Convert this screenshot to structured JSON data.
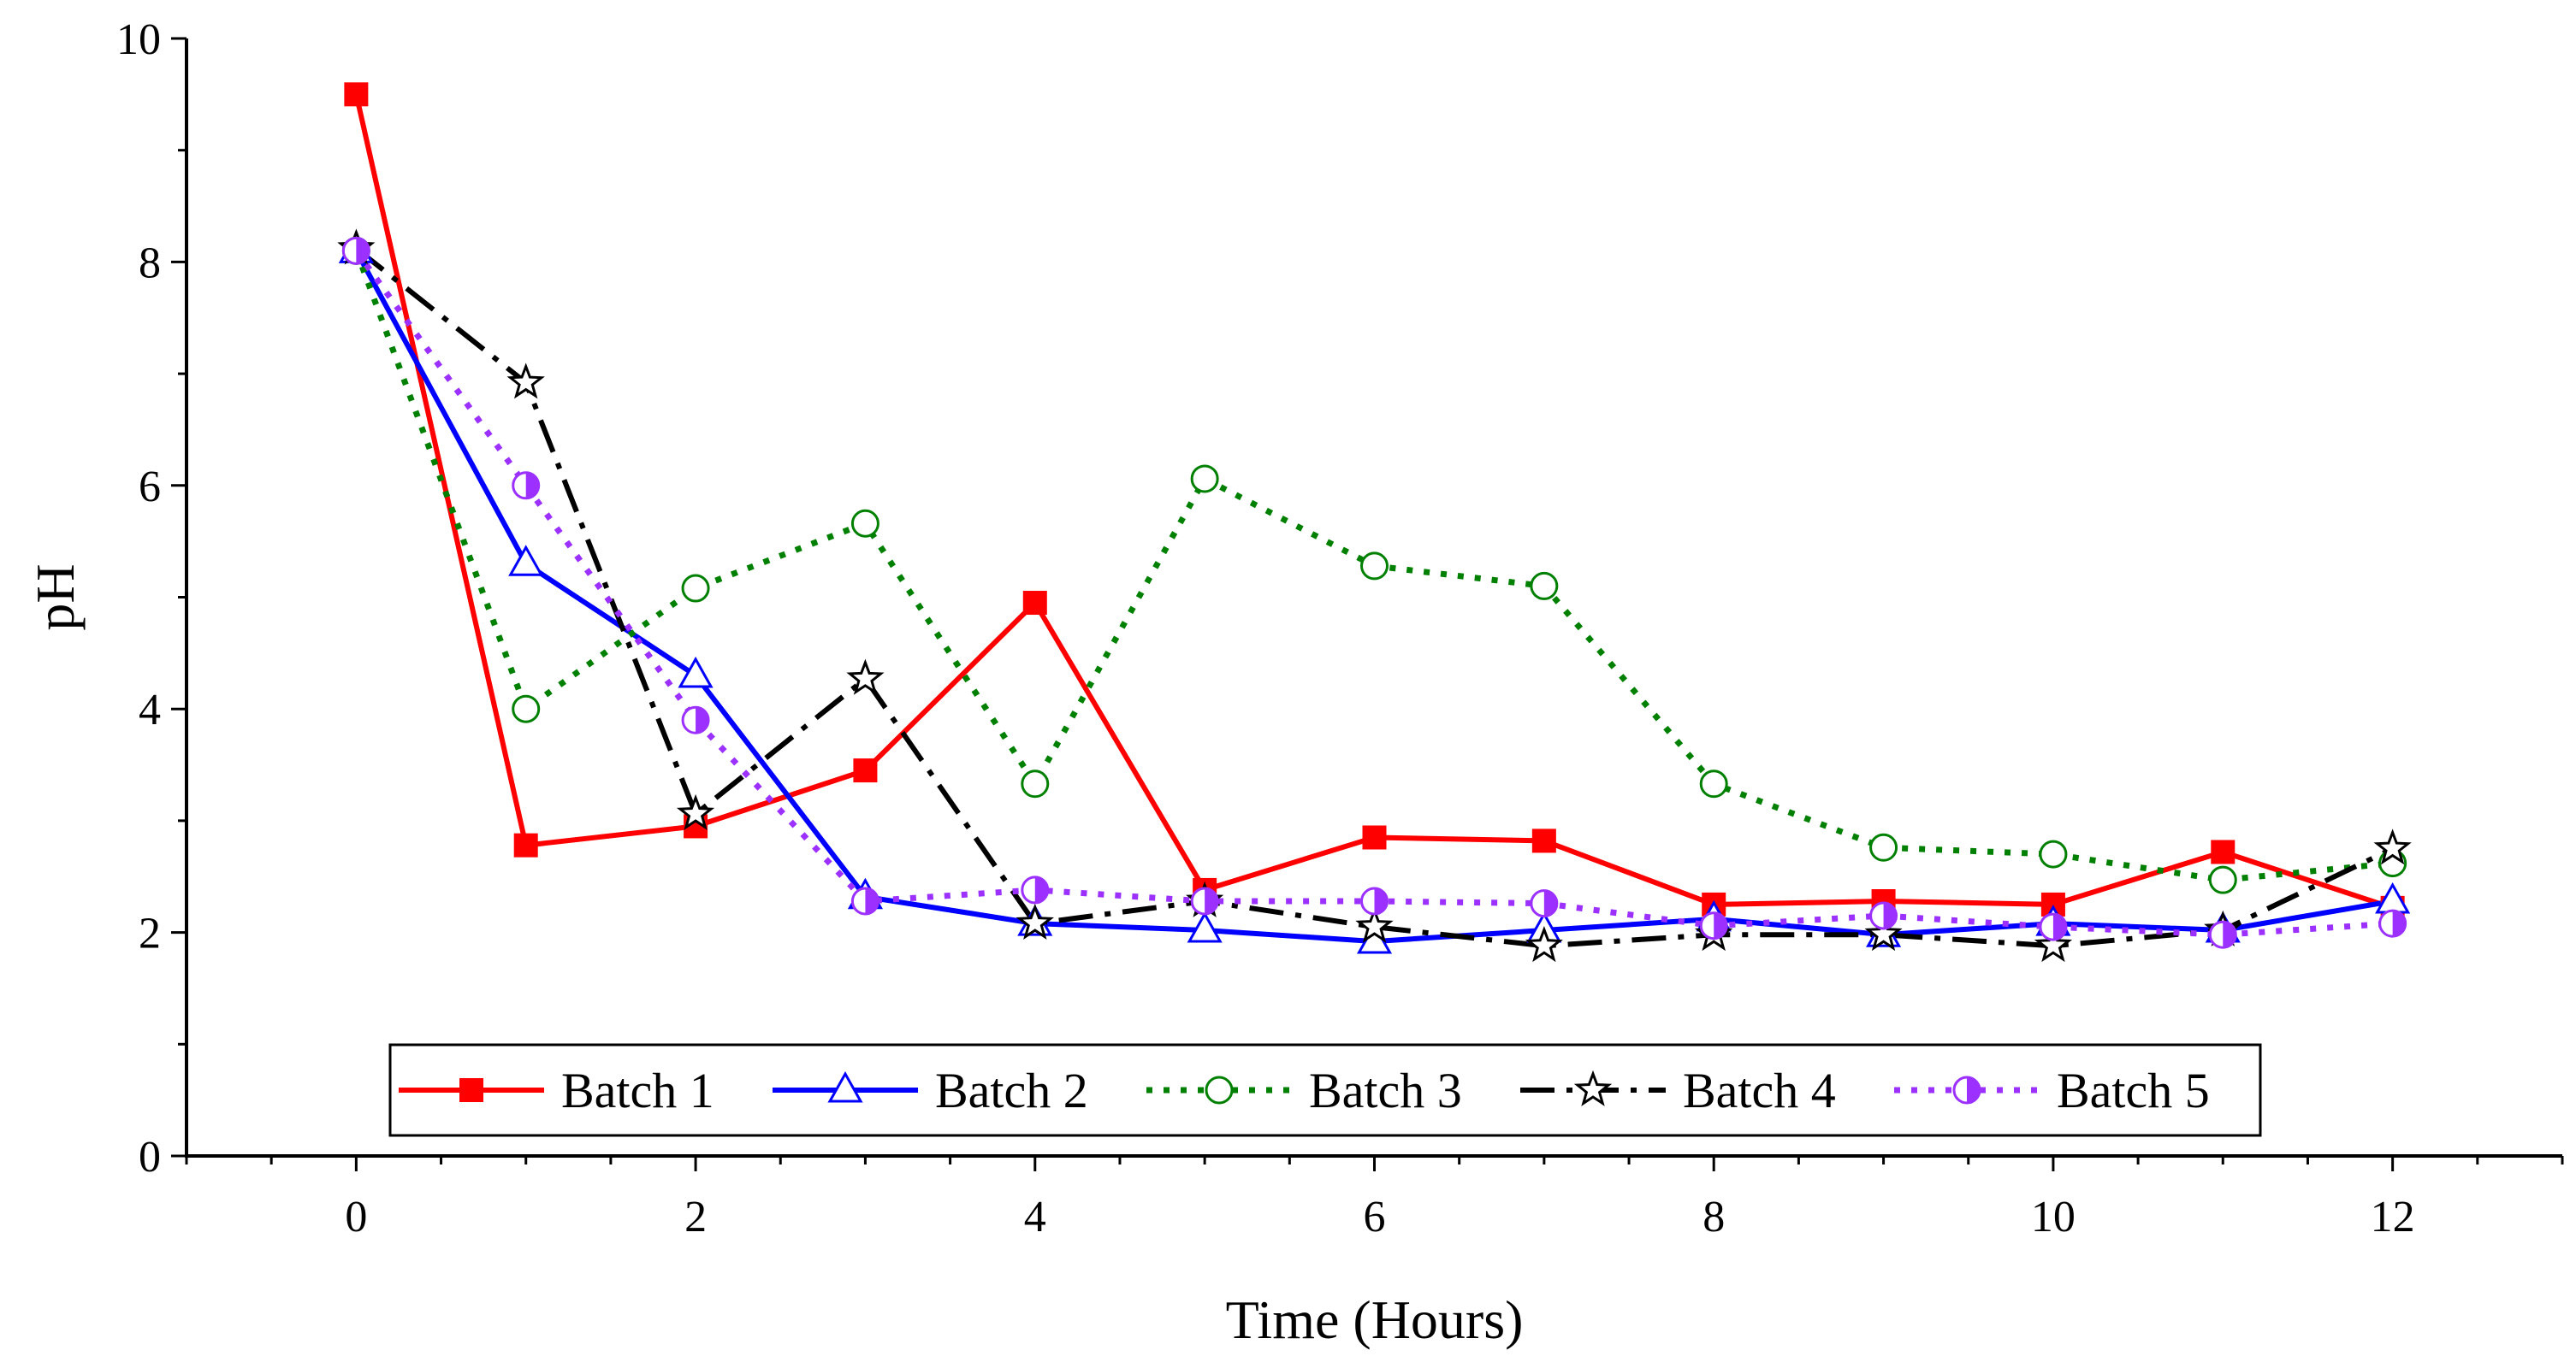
{
  "chart_data": {
    "type": "line",
    "title": "",
    "xlabel": "Time (Hours)",
    "ylabel": "pH",
    "xlim": [
      -1,
      13
    ],
    "ylim": [
      0,
      10
    ],
    "x_ticks": [
      0,
      2,
      4,
      6,
      8,
      10,
      12
    ],
    "x_tick_labels": [
      "0",
      "2",
      "4",
      "6",
      "8",
      "10",
      "12"
    ],
    "y_ticks": [
      0,
      2,
      4,
      6,
      8,
      10
    ],
    "y_tick_labels": [
      "0",
      "2",
      "4",
      "6",
      "8",
      "10"
    ],
    "grid": false,
    "legend_position": "bottom-center",
    "x": [
      0,
      1,
      2,
      3,
      4,
      5,
      6,
      7,
      8,
      9,
      10,
      11,
      12
    ],
    "series": [
      {
        "name": "Batch 1",
        "color": "#ff0000",
        "marker": "filled-square",
        "line": "solid",
        "values": [
          9.5,
          2.78,
          2.95,
          3.45,
          4.95,
          2.38,
          2.85,
          2.82,
          2.25,
          2.28,
          2.25,
          2.72,
          2.22
        ]
      },
      {
        "name": "Batch 2",
        "color": "#0000ff",
        "marker": "open-triangle",
        "line": "solid",
        "values": [
          8.1,
          5.3,
          4.3,
          2.32,
          2.08,
          2.02,
          1.92,
          2.02,
          2.12,
          1.98,
          2.08,
          2.02,
          2.28
        ]
      },
      {
        "name": "Batch 3",
        "color": "#008000",
        "marker": "open-circle",
        "line": "dotted",
        "values": [
          8.1,
          4.0,
          5.08,
          5.66,
          3.33,
          6.06,
          5.28,
          5.1,
          3.33,
          2.76,
          2.7,
          2.47,
          2.62
        ]
      },
      {
        "name": "Batch 4",
        "color": "#000000",
        "marker": "open-star",
        "line": "dash-dot",
        "values": [
          8.12,
          6.92,
          3.06,
          4.27,
          2.08,
          2.28,
          2.05,
          1.88,
          1.98,
          1.98,
          1.88,
          2.02,
          2.75
        ]
      },
      {
        "name": "Batch 5",
        "color": "#9b30ff",
        "marker": "half-circle",
        "line": "dotted",
        "values": [
          8.1,
          6.0,
          3.9,
          2.28,
          2.38,
          2.28,
          2.28,
          2.26,
          2.06,
          2.15,
          2.05,
          1.98,
          2.08
        ]
      }
    ]
  }
}
